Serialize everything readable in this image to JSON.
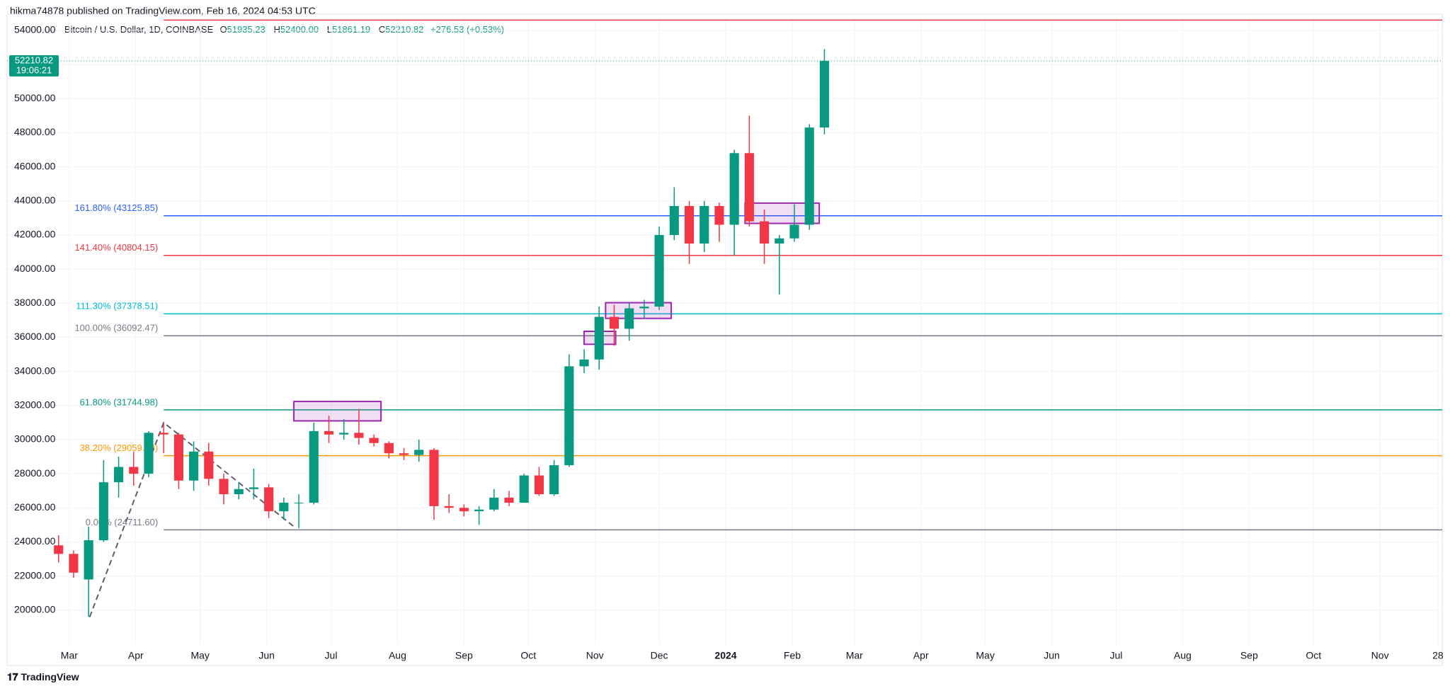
{
  "publisher": "hikma74878 published on TradingView.com, Feb 16, 2024 04:53 UTC",
  "brand": "TradingView",
  "legend": {
    "symbol": "Bitcoin / U.S. Dollar, 1D, COINBASE",
    "ohlc": [
      {
        "label": "O",
        "value": "51935.23"
      },
      {
        "label": "H",
        "value": "52400.00"
      },
      {
        "label": "L",
        "value": "51861.19"
      },
      {
        "label": "C",
        "value": "52210.82"
      }
    ],
    "change": "+276.53 (+0.53%)"
  },
  "chart_data": {
    "type": "candlestick",
    "up_color": "#089981",
    "down_color": "#f23645",
    "x": [
      -5,
      2,
      9,
      16,
      23,
      30,
      37,
      44,
      51,
      58,
      65,
      72,
      79,
      86,
      93,
      100,
      107,
      114,
      121,
      128,
      135,
      142,
      149,
      156,
      163,
      170,
      177,
      184,
      191,
      198,
      205,
      212,
      219,
      226,
      233,
      240,
      247,
      254,
      261,
      268,
      275,
      282,
      289,
      296,
      303,
      310,
      317,
      324,
      331,
      338,
      345,
      352
    ],
    "open": [
      23800,
      23300,
      21800,
      24100,
      27500,
      28400,
      28000,
      30400,
      30300,
      27600,
      29300,
      27700,
      26800,
      27100,
      27200,
      25800,
      26300,
      26300,
      30500,
      30300,
      30400,
      30100,
      29800,
      29200,
      29100,
      29400,
      26100,
      26000,
      25800,
      25900,
      26600,
      26300,
      27900,
      26800,
      28500,
      34300,
      34700,
      37200,
      36500,
      37700,
      37800,
      42000,
      43700,
      41500,
      43700,
      42600,
      46800,
      42800,
      41500,
      41800,
      42600,
      48300
    ],
    "high": [
      24400,
      23500,
      24900,
      28800,
      29000,
      29300,
      30500,
      31000,
      30400,
      29900,
      29800,
      28000,
      27500,
      28300,
      27400,
      26600,
      26800,
      31000,
      31400,
      31200,
      31800,
      30300,
      29900,
      29500,
      30000,
      29500,
      26800,
      26200,
      26100,
      27100,
      27000,
      28000,
      28400,
      28800,
      35000,
      35300,
      37800,
      37900,
      38000,
      38200,
      42500,
      44800,
      44000,
      44000,
      43900,
      47000,
      49000,
      43500,
      42000,
      43800,
      48500,
      52900
    ],
    "low": [
      22800,
      21900,
      19600,
      24000,
      26600,
      27300,
      27800,
      29200,
      27100,
      27000,
      27300,
      26200,
      26500,
      26500,
      25400,
      25300,
      24800,
      26200,
      29800,
      30000,
      29700,
      29600,
      28900,
      28800,
      28700,
      25300,
      25700,
      25500,
      25000,
      25800,
      26100,
      26300,
      26700,
      26700,
      28400,
      33900,
      34100,
      35500,
      35800,
      37100,
      37600,
      41700,
      40300,
      41000,
      41600,
      40800,
      42500,
      40300,
      38500,
      41600,
      42300,
      47900
    ],
    "close": [
      23300,
      22200,
      24100,
      27500,
      28400,
      28000,
      30400,
      30300,
      27600,
      29300,
      27700,
      26800,
      27100,
      27200,
      25800,
      26300,
      26300,
      30500,
      30300,
      30400,
      30100,
      29800,
      29200,
      29100,
      29400,
      26100,
      26000,
      25800,
      25900,
      26600,
      26300,
      27900,
      26800,
      28500,
      34300,
      34700,
      37200,
      36500,
      37700,
      37800,
      42000,
      43700,
      41500,
      43700,
      42600,
      46800,
      42800,
      41500,
      41800,
      42600,
      48300,
      52210.82
    ],
    "xlim": [
      -29,
      640
    ],
    "xticks": [
      {
        "value": 0,
        "label": "Mar"
      },
      {
        "value": 31,
        "label": "Apr"
      },
      {
        "value": 61,
        "label": "May"
      },
      {
        "value": 92,
        "label": "Jun"
      },
      {
        "value": 122,
        "label": "Jul"
      },
      {
        "value": 153,
        "label": "Aug"
      },
      {
        "value": 184,
        "label": "Sep"
      },
      {
        "value": 214,
        "label": "Oct"
      },
      {
        "value": 245,
        "label": "Nov"
      },
      {
        "value": 275,
        "label": "Dec"
      },
      {
        "value": 306,
        "label": "2024"
      },
      {
        "value": 337,
        "label": "Feb"
      },
      {
        "value": 366,
        "label": "Mar"
      },
      {
        "value": 397,
        "label": "Apr"
      },
      {
        "value": 427,
        "label": "May"
      },
      {
        "value": 458,
        "label": "Jun"
      },
      {
        "value": 488,
        "label": "Jul"
      },
      {
        "value": 519,
        "label": "Aug"
      },
      {
        "value": 550,
        "label": "Sep"
      },
      {
        "value": 580,
        "label": "Oct"
      },
      {
        "value": 611,
        "label": "Nov"
      },
      {
        "value": 638,
        "label": "28"
      }
    ],
    "ylim": [
      18000,
      54700
    ],
    "yticks": [
      {
        "value": 20000,
        "label": "20000.00"
      },
      {
        "value": 22000,
        "label": "22000.00"
      },
      {
        "value": 24000,
        "label": "24000.00"
      },
      {
        "value": 26000,
        "label": "26000.00"
      },
      {
        "value": 28000,
        "label": "28000.00"
      },
      {
        "value": 30000,
        "label": "30000.00"
      },
      {
        "value": 32000,
        "label": "32000.00"
      },
      {
        "value": 34000,
        "label": "34000.00"
      },
      {
        "value": 36000,
        "label": "36000.00"
      },
      {
        "value": 38000,
        "label": "38000.00"
      },
      {
        "value": 40000,
        "label": "40000.00"
      },
      {
        "value": 42000,
        "label": "42000.00"
      },
      {
        "value": 44000,
        "label": "44000.00"
      },
      {
        "value": 46000,
        "label": "46000.00"
      },
      {
        "value": 48000,
        "label": "48000.00"
      },
      {
        "value": 50000,
        "label": "50000.00"
      },
      {
        "value": 52000,
        "label": "52000.00"
      },
      {
        "value": 54000,
        "label": "54000.00"
      }
    ],
    "grid": true,
    "last_price": {
      "value": 52210.82,
      "countdown": "19:06:21",
      "color": "#089981"
    },
    "trendline": {
      "x": [
        9.5,
        44,
        105.7
      ],
      "values": [
        19600,
        31000,
        24800
      ],
      "color": "#5d606b"
    },
    "levels": [
      {
        "value": 54600,
        "color": "#f23645"
      },
      {
        "value": 43125.85,
        "label": "161.80% (43125.85)",
        "color": "#2962ff"
      },
      {
        "value": 40804.15,
        "label": "141.40% (40804.15)",
        "color": "#f23645"
      },
      {
        "value": 37378.51,
        "label": "111.30% (37378.51)",
        "color": "#00bcd4"
      },
      {
        "value": 36092.47,
        "label": "100.00% (36092.47)",
        "color": "#787b86"
      },
      {
        "value": 31744.98,
        "label": "61.80% (31744.98)",
        "color": "#089981"
      },
      {
        "value": 29059.09,
        "label": "38.20% (29059.09)",
        "color": "#ff9800"
      },
      {
        "value": 24711.6,
        "label": "0.00% (24711.60)",
        "color": "#787b86"
      }
    ],
    "zones": [
      {
        "x": [
          104.7,
          145.3
        ],
        "y": [
          31100,
          32236
        ]
      },
      {
        "x": [
          240,
          254.7
        ],
        "y": [
          35590,
          36350
        ]
      },
      {
        "x": [
          250,
          280.6
        ],
        "y": [
          37110,
          38030
        ]
      },
      {
        "x": [
          315,
          349.6
        ],
        "y": [
          42680,
          43870
        ]
      }
    ],
    "zone_color": "#9c27b0"
  }
}
